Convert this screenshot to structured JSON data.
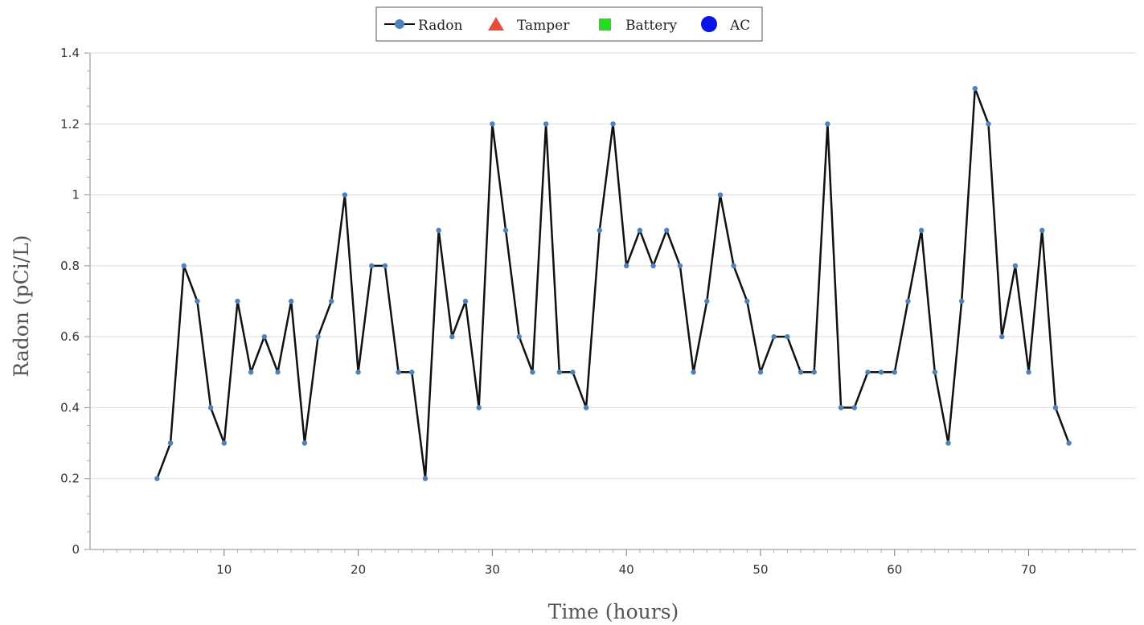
{
  "chart_data": {
    "type": "line",
    "title": "",
    "xlabel": "Time (hours)",
    "ylabel": "Radon (pCi/L)",
    "xlim": [
      0,
      78
    ],
    "ylim": [
      0,
      1.4
    ],
    "x_ticks": [
      10,
      20,
      30,
      40,
      50,
      60,
      70
    ],
    "y_ticks": [
      0,
      0.2,
      0.4,
      0.6,
      0.8,
      1,
      1.2,
      1.4
    ],
    "grid": "horizontal",
    "legend_position": "top-center",
    "legend": [
      {
        "label": "Radon",
        "marker": "line-circle",
        "color": "#4f81bd"
      },
      {
        "label": "Tamper",
        "marker": "triangle",
        "color": "#e74c3c"
      },
      {
        "label": "Battery",
        "marker": "square",
        "color": "#22dd22"
      },
      {
        "label": "AC",
        "marker": "circle",
        "color": "#0a14e6"
      }
    ],
    "series": [
      {
        "name": "Radon",
        "line_color": "#111111",
        "marker_color": "#4f81bd",
        "x": [
          5,
          6,
          7,
          8,
          9,
          10,
          11,
          12,
          13,
          14,
          15,
          16,
          17,
          18,
          19,
          20,
          21,
          22,
          23,
          24,
          25,
          26,
          27,
          28,
          29,
          30,
          31,
          32,
          33,
          34,
          35,
          36,
          37,
          38,
          39,
          40,
          41,
          42,
          43,
          44,
          45,
          46,
          47,
          48,
          49,
          50,
          51,
          52,
          53,
          54,
          55,
          56,
          57,
          58,
          59,
          60,
          61,
          62,
          63,
          64,
          65,
          66,
          67,
          68,
          69,
          70,
          71,
          72,
          73
        ],
        "y": [
          0.2,
          0.3,
          0.8,
          0.7,
          0.4,
          0.3,
          0.7,
          0.5,
          0.6,
          0.5,
          0.7,
          0.3,
          0.6,
          0.7,
          1.0,
          0.5,
          0.8,
          0.8,
          0.5,
          0.5,
          0.2,
          0.9,
          0.6,
          0.7,
          0.4,
          1.2,
          0.9,
          0.6,
          0.5,
          1.2,
          0.5,
          0.5,
          0.4,
          0.9,
          1.2,
          0.8,
          0.9,
          0.8,
          0.9,
          0.8,
          0.5,
          0.7,
          1.0,
          0.8,
          0.7,
          0.5,
          0.6,
          0.6,
          0.5,
          0.5,
          1.2,
          0.4,
          0.4,
          0.5,
          0.5,
          0.5,
          0.7,
          0.9,
          0.5,
          0.3,
          0.7,
          1.3,
          1.2,
          0.6,
          0.8,
          0.5,
          0.9,
          0.4,
          0.3
        ]
      }
    ]
  }
}
